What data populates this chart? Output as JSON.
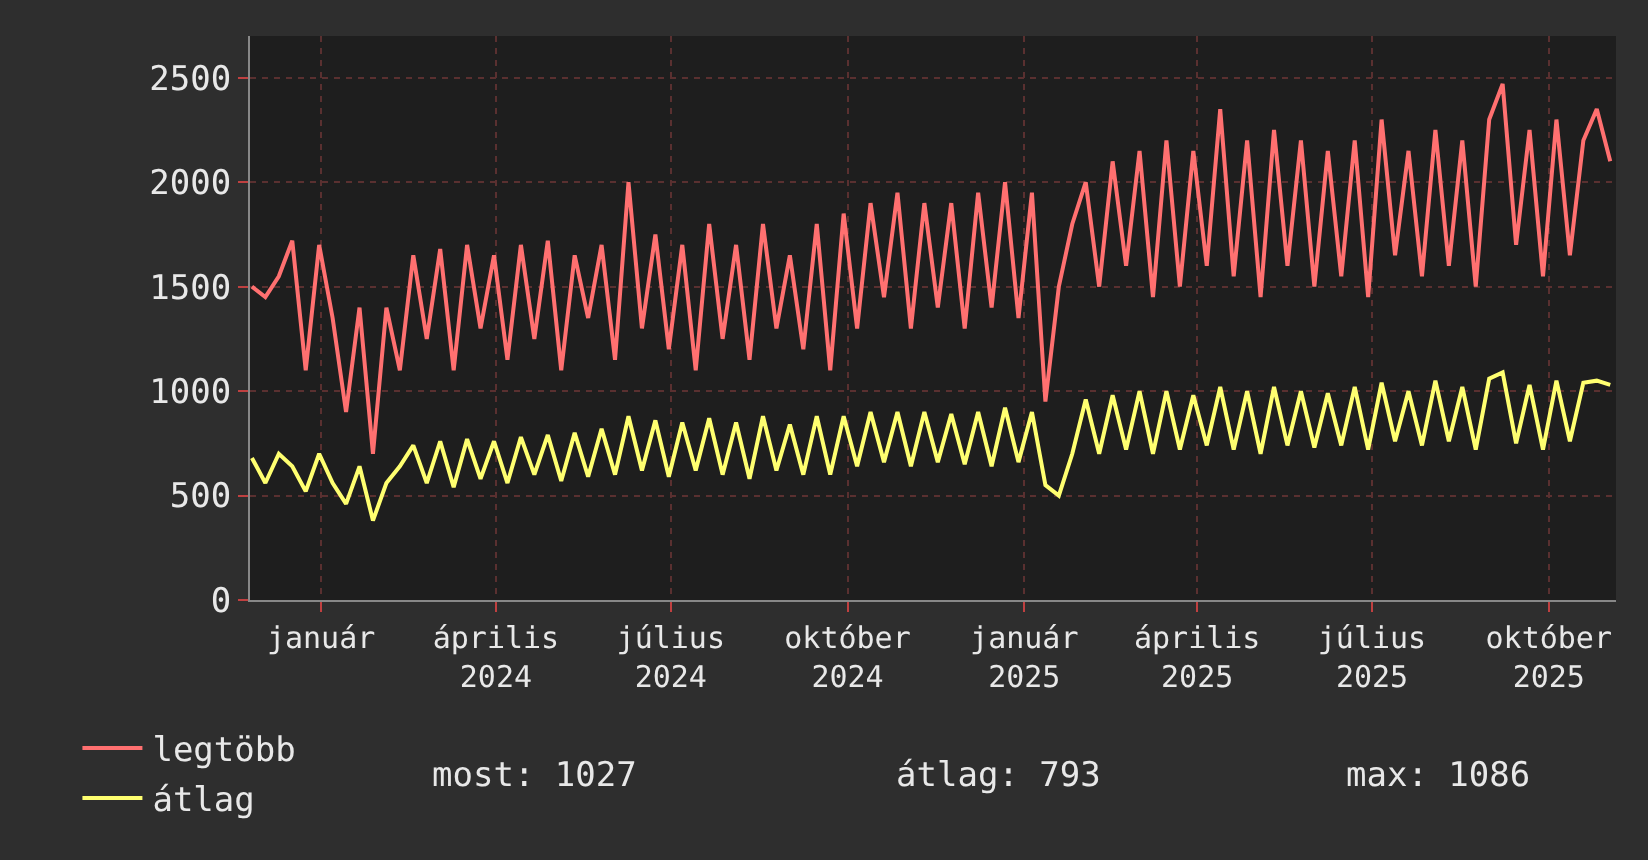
{
  "chart_data": {
    "type": "line",
    "x": [
      "2023-11-26",
      "2023-12-03",
      "2023-12-10",
      "2023-12-17",
      "2023-12-24",
      "2023-12-31",
      "2024-01-07",
      "2024-01-14",
      "2024-01-21",
      "2024-01-28",
      "2024-02-04",
      "2024-02-11",
      "2024-02-18",
      "2024-02-25",
      "2024-03-03",
      "2024-03-10",
      "2024-03-17",
      "2024-03-24",
      "2024-03-31",
      "2024-04-07",
      "2024-04-14",
      "2024-04-21",
      "2024-04-28",
      "2024-05-05",
      "2024-05-12",
      "2024-05-19",
      "2024-05-26",
      "2024-06-02",
      "2024-06-09",
      "2024-06-16",
      "2024-06-23",
      "2024-06-30",
      "2024-07-07",
      "2024-07-14",
      "2024-07-21",
      "2024-07-28",
      "2024-08-04",
      "2024-08-11",
      "2024-08-18",
      "2024-08-25",
      "2024-09-01",
      "2024-09-08",
      "2024-09-15",
      "2024-09-22",
      "2024-09-29",
      "2024-10-06",
      "2024-10-13",
      "2024-10-20",
      "2024-10-27",
      "2024-11-03",
      "2024-11-10",
      "2024-11-17",
      "2024-11-24",
      "2024-12-01",
      "2024-12-08",
      "2024-12-15",
      "2024-12-22",
      "2024-12-29",
      "2025-01-05",
      "2025-01-12",
      "2025-01-19",
      "2025-01-26",
      "2025-02-02",
      "2025-02-09",
      "2025-02-16",
      "2025-02-23",
      "2025-03-02",
      "2025-03-09",
      "2025-03-16",
      "2025-03-23",
      "2025-03-30",
      "2025-04-06",
      "2025-04-13",
      "2025-04-20",
      "2025-04-27",
      "2025-05-04",
      "2025-05-11",
      "2025-05-18",
      "2025-05-25",
      "2025-06-01",
      "2025-06-08",
      "2025-06-15",
      "2025-06-22",
      "2025-06-29",
      "2025-07-06",
      "2025-07-13",
      "2025-07-20",
      "2025-07-27",
      "2025-08-03",
      "2025-08-10",
      "2025-08-17",
      "2025-08-24",
      "2025-08-31",
      "2025-09-07",
      "2025-09-14",
      "2025-09-21",
      "2025-09-28",
      "2025-10-05",
      "2025-10-12",
      "2025-10-19",
      "2025-10-26",
      "2025-11-02"
    ],
    "series": [
      {
        "name": "legtöbb",
        "color": "#ff7070",
        "values": [
          1500,
          1450,
          1550,
          1720,
          1100,
          1700,
          1350,
          900,
          1400,
          700,
          1400,
          1100,
          1650,
          1250,
          1680,
          1100,
          1700,
          1300,
          1650,
          1150,
          1700,
          1250,
          1720,
          1100,
          1650,
          1350,
          1700,
          1150,
          2000,
          1300,
          1750,
          1200,
          1700,
          1100,
          1800,
          1250,
          1700,
          1150,
          1800,
          1300,
          1650,
          1200,
          1800,
          1100,
          1850,
          1300,
          1900,
          1450,
          1950,
          1300,
          1900,
          1400,
          1900,
          1300,
          1950,
          1400,
          2000,
          1350,
          1950,
          950,
          1500,
          1800,
          2000,
          1500,
          2100,
          1600,
          2150,
          1450,
          2200,
          1500,
          2150,
          1600,
          2350,
          1550,
          2200,
          1450,
          2250,
          1600,
          2200,
          1500,
          2150,
          1550,
          2200,
          1450,
          2300,
          1650,
          2150,
          1550,
          2250,
          1600,
          2200,
          1500,
          2300,
          2470,
          1700,
          2250,
          1550,
          2300,
          1650,
          2200,
          2350,
          2100
        ]
      },
      {
        "name": "átlag",
        "color": "#ffff70",
        "values": [
          680,
          560,
          700,
          640,
          520,
          700,
          560,
          460,
          640,
          380,
          560,
          640,
          740,
          560,
          760,
          540,
          770,
          580,
          760,
          560,
          780,
          600,
          790,
          570,
          800,
          590,
          820,
          600,
          880,
          620,
          860,
          590,
          850,
          620,
          870,
          600,
          850,
          580,
          880,
          620,
          840,
          600,
          880,
          600,
          880,
          640,
          900,
          660,
          900,
          640,
          900,
          660,
          890,
          650,
          900,
          640,
          920,
          660,
          900,
          550,
          500,
          700,
          960,
          700,
          980,
          720,
          1000,
          700,
          1000,
          720,
          980,
          740,
          1020,
          720,
          1000,
          700,
          1020,
          740,
          1000,
          730,
          990,
          740,
          1020,
          720,
          1040,
          760,
          1000,
          740,
          1050,
          760,
          1020,
          720,
          1060,
          1090,
          750,
          1030,
          720,
          1050,
          760,
          1040,
          1050,
          1030
        ]
      }
    ],
    "xlim": [
      "2023-11-25",
      "2025-11-05"
    ],
    "xticks": [
      {
        "value": "2024-01-01",
        "label": "január"
      },
      {
        "value": "2024-04-01",
        "label": "április\n2024"
      },
      {
        "value": "2024-07-01",
        "label": "július\n2024"
      },
      {
        "value": "2024-10-01",
        "label": "október\n2024"
      },
      {
        "value": "2025-01-01",
        "label": "január\n2025"
      },
      {
        "value": "2025-04-01",
        "label": "április\n2025"
      },
      {
        "value": "2025-07-01",
        "label": "július\n2025"
      },
      {
        "value": "2025-10-01",
        "label": "október\n2025"
      }
    ],
    "ylim": [
      0,
      2700
    ],
    "yticks": [
      0,
      500,
      1000,
      1500,
      2000,
      2500
    ],
    "grid": true,
    "legend": "bottom left",
    "marker": "none",
    "line_style": "solid",
    "annotations": [
      "most: 1027",
      "átlag: 793",
      "max: 1086"
    ]
  }
}
